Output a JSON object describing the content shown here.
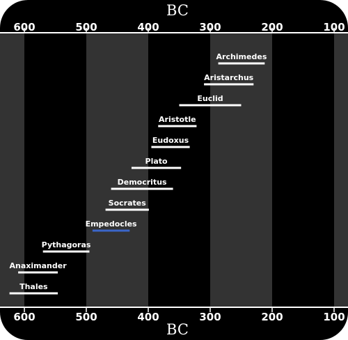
{
  "chart_data": {
    "type": "timeline",
    "era_label": "BC",
    "x_axis": {
      "min": 0,
      "max": 100,
      "ticks": [
        600,
        500,
        400,
        300,
        200,
        100
      ],
      "reversed": true
    },
    "bands": [
      {
        "from": 700,
        "to": 600,
        "color": "#333333"
      },
      {
        "from": 600,
        "to": 500,
        "color": "#000000"
      },
      {
        "from": 500,
        "to": 400,
        "color": "#333333"
      },
      {
        "from": 400,
        "to": 300,
        "color": "#000000"
      },
      {
        "from": 300,
        "to": 200,
        "color": "#333333"
      },
      {
        "from": 200,
        "to": 100,
        "color": "#000000"
      },
      {
        "from": 100,
        "to": 0,
        "color": "#333333"
      }
    ],
    "people": [
      {
        "name": "Archimedes",
        "start": 287,
        "end": 212,
        "color": "#ffffff"
      },
      {
        "name": "Aristarchus",
        "start": 310,
        "end": 230,
        "color": "#ffffff"
      },
      {
        "name": "Euclid",
        "start": 350,
        "end": 250,
        "color": "#ffffff"
      },
      {
        "name": "Aristotle",
        "start": 384,
        "end": 322,
        "color": "#ffffff"
      },
      {
        "name": "Eudoxus",
        "start": 395,
        "end": 333,
        "color": "#ffffff"
      },
      {
        "name": "Plato",
        "start": 427,
        "end": 347,
        "color": "#ffffff"
      },
      {
        "name": "Democritus",
        "start": 460,
        "end": 360,
        "color": "#ffffff"
      },
      {
        "name": "Socrates",
        "start": 469,
        "end": 399,
        "color": "#ffffff"
      },
      {
        "name": "Empedocles",
        "start": 490,
        "end": 430,
        "color": "#3b66c9"
      },
      {
        "name": "Pythagoras",
        "start": 570,
        "end": 495,
        "color": "#ffffff"
      },
      {
        "name": "Anaximander",
        "start": 610,
        "end": 546,
        "color": "#ffffff"
      },
      {
        "name": "Thales",
        "start": 624,
        "end": 546,
        "color": "#ffffff"
      }
    ]
  }
}
